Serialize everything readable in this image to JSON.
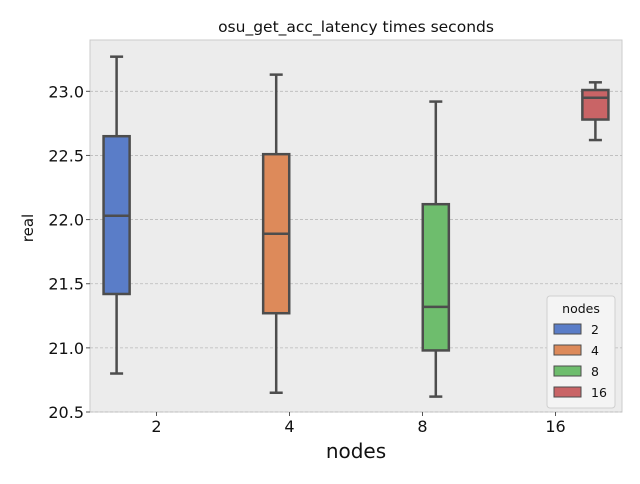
{
  "chart_data": {
    "type": "box",
    "title": "osu_get_acc_latency times seconds",
    "xlabel": "nodes",
    "ylabel": "real",
    "ylim": [
      20.5,
      23.4
    ],
    "yticks": [
      "20.5",
      "21.0",
      "21.5",
      "22.0",
      "22.5",
      "23.0"
    ],
    "categories": [
      "2",
      "4",
      "8",
      "16"
    ],
    "grid": true,
    "legend_position": "lower-right",
    "legend_title": "nodes",
    "series": [
      {
        "name": "2",
        "color": "#5a7dc8",
        "min": 20.8,
        "q1": 21.42,
        "median": 22.03,
        "q3": 22.65,
        "max": 23.27
      },
      {
        "name": "4",
        "color": "#dd8a5a",
        "min": 20.65,
        "q1": 21.27,
        "median": 21.89,
        "q3": 22.51,
        "max": 23.13
      },
      {
        "name": "8",
        "color": "#6ebd6d",
        "min": 20.62,
        "q1": 20.98,
        "median": 21.32,
        "q3": 22.12,
        "max": 22.92
      },
      {
        "name": "16",
        "color": "#c96466",
        "min": 22.62,
        "q1": 22.78,
        "median": 22.95,
        "q3": 23.01,
        "max": 23.07
      }
    ]
  }
}
